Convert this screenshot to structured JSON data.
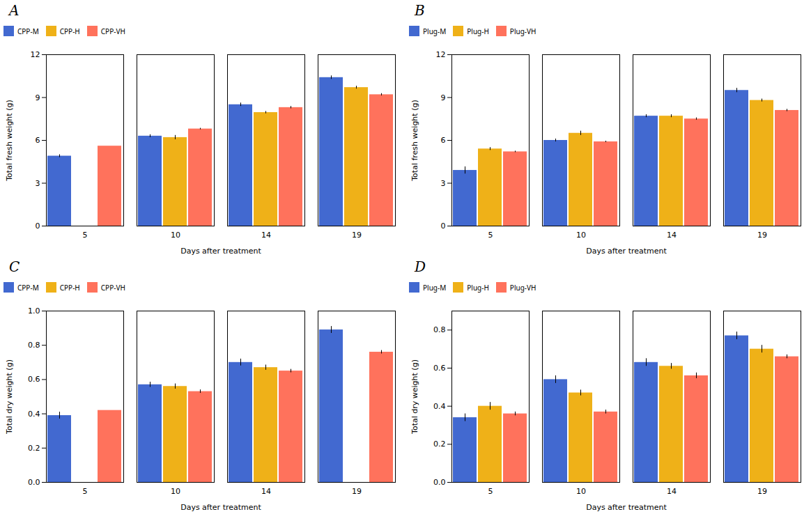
{
  "chart_data": [
    {
      "type": "bar",
      "title": "A",
      "xlabel": "Days after treatment",
      "ylabel": "Total fresh weight (g)",
      "categories": [
        "5",
        "10",
        "14",
        "19"
      ],
      "series": [
        {
          "name": "CPP-M",
          "values": [
            4.9,
            6.3,
            8.5,
            10.4
          ],
          "errors": [
            0.1,
            0.1,
            0.12,
            0.12
          ]
        },
        {
          "name": "CPP-H",
          "values": [
            null,
            6.2,
            7.95,
            9.7
          ],
          "errors": [
            null,
            0.15,
            0.08,
            0.1
          ]
        },
        {
          "name": "CPP-VH",
          "values": [
            5.6,
            6.8,
            8.3,
            9.2
          ],
          "errors": [
            0,
            0.05,
            0.08,
            0.08
          ]
        }
      ],
      "ylim": [
        0,
        12
      ],
      "yticks": [
        0,
        3,
        6,
        9,
        12
      ],
      "legend": "top"
    },
    {
      "type": "bar",
      "title": "B",
      "xlabel": "Days after treatment",
      "ylabel": "Total fresh weight (g)",
      "categories": [
        "5",
        "10",
        "14",
        "19"
      ],
      "series": [
        {
          "name": "Plug-M",
          "values": [
            3.9,
            6.0,
            7.7,
            9.5
          ],
          "errors": [
            0.25,
            0.1,
            0.1,
            0.15
          ]
        },
        {
          "name": "Plug-H",
          "values": [
            5.4,
            6.5,
            7.7,
            8.8
          ],
          "errors": [
            0.1,
            0.15,
            0.1,
            0.1
          ]
        },
        {
          "name": "Plug-VH",
          "values": [
            5.2,
            5.9,
            7.5,
            8.1
          ],
          "errors": [
            0.05,
            0.05,
            0.08,
            0.08
          ]
        }
      ],
      "ylim": [
        0,
        12
      ],
      "yticks": [
        0,
        3,
        6,
        9,
        12
      ],
      "legend": "top"
    },
    {
      "type": "bar",
      "title": "C",
      "xlabel": "Days after treatment",
      "ylabel": "Total dry weight (g)",
      "categories": [
        "5",
        "10",
        "14",
        "19"
      ],
      "series": [
        {
          "name": "CPP-M",
          "values": [
            0.39,
            0.57,
            0.7,
            0.89
          ],
          "errors": [
            0.02,
            0.015,
            0.02,
            0.02
          ]
        },
        {
          "name": "CPP-H",
          "values": [
            null,
            0.56,
            0.67,
            null
          ],
          "errors": [
            null,
            0.015,
            0.015,
            null
          ]
        },
        {
          "name": "CPP-VH",
          "values": [
            0.42,
            0.53,
            0.65,
            0.76
          ],
          "errors": [
            0,
            0.01,
            0.01,
            0.01
          ]
        }
      ],
      "ylim": [
        0,
        1
      ],
      "yticks": [
        {
          "value": 0,
          "label": "0.0"
        },
        0.2,
        0.4,
        0.6,
        0.8,
        {
          "value": 1,
          "label": "1.0"
        }
      ],
      "legend": "top"
    },
    {
      "type": "bar",
      "title": "D",
      "xlabel": "Days after treatment",
      "ylabel": "Total dry weight (g)",
      "categories": [
        "5",
        "10",
        "14",
        "19"
      ],
      "series": [
        {
          "name": "Plug-M",
          "values": [
            0.34,
            0.54,
            0.63,
            0.77
          ],
          "errors": [
            0.02,
            0.02,
            0.02,
            0.02
          ]
        },
        {
          "name": "Plug-H",
          "values": [
            0.4,
            0.47,
            0.61,
            0.7
          ],
          "errors": [
            0.02,
            0.015,
            0.015,
            0.02
          ]
        },
        {
          "name": "Plug-VH",
          "values": [
            0.36,
            0.37,
            0.56,
            0.66
          ],
          "errors": [
            0.01,
            0.01,
            0.015,
            0.01
          ]
        }
      ],
      "ylim": [
        0,
        0.9
      ],
      "yticks": [
        {
          "value": 0,
          "label": "0.0"
        },
        0.2,
        0.4,
        0.6,
        0.8
      ],
      "legend": "top"
    }
  ]
}
